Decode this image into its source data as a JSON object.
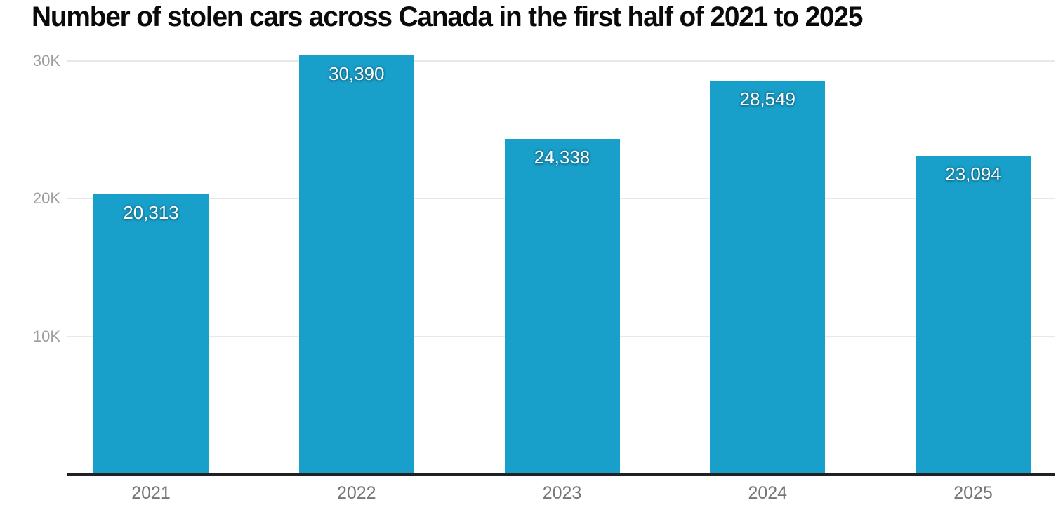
{
  "title": "Number of stolen cars across Canada in the first half of 2021 to 2025",
  "chart_data": {
    "type": "bar",
    "title": "Number of stolen cars across Canada in the first half of 2021 to 2025",
    "categories": [
      "2021",
      "2022",
      "2023",
      "2024",
      "2025"
    ],
    "values": [
      20313,
      30390,
      24338,
      28549,
      23094
    ],
    "value_labels": [
      "20,313",
      "30,390",
      "24,338",
      "28,549",
      "23,094"
    ],
    "xlabel": "",
    "ylabel": "",
    "ylim": [
      0,
      31000
    ],
    "yticks": [
      {
        "value": 10000,
        "label": "10K"
      },
      {
        "value": 20000,
        "label": "20K"
      },
      {
        "value": 30000,
        "label": "30K"
      }
    ],
    "grid": true,
    "legend": "none",
    "bar_color": "#18A0CB"
  },
  "colors": {
    "background": "#ffffff",
    "bar": "#18A0CB",
    "bar_value_label": "#ffffff",
    "gridline": "#e8e8e8",
    "axis_line": "#212121",
    "y_tick_label": "#9e9e9e",
    "x_tick_label": "#757575",
    "title": "#0a0a0a"
  }
}
